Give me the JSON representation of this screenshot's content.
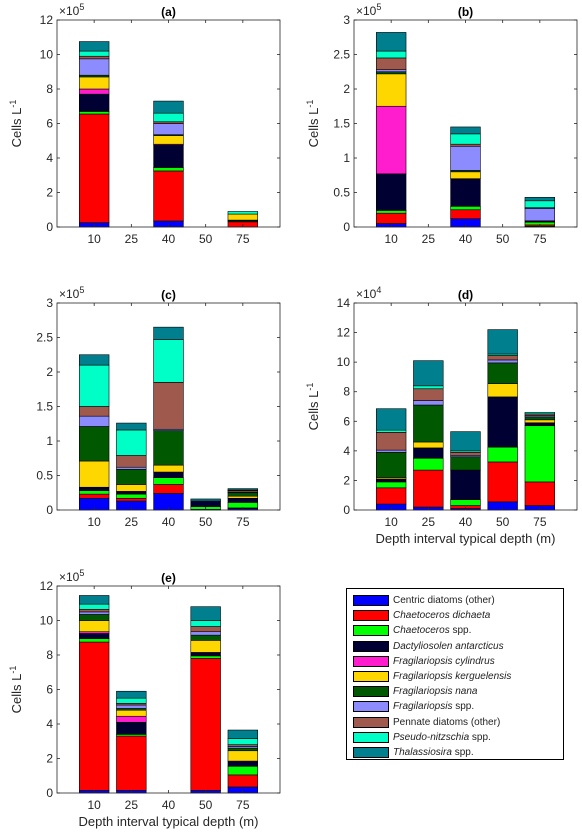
{
  "categories": [
    "10",
    "25",
    "40",
    "50",
    "75"
  ],
  "legend": [
    {
      "label": "Centric diatoms (other)",
      "italic": "",
      "suffix": "",
      "color": "#0000ff"
    },
    {
      "label": "",
      "italic": "Chaetoceros dichaeta",
      "suffix": "",
      "color": "#ff0000"
    },
    {
      "label": "",
      "italic": "Chaetoceros",
      "suffix": " spp.",
      "color": "#00ff00"
    },
    {
      "label": "",
      "italic": "Dactyliosolen antarcticus",
      "suffix": "",
      "color": "#000033"
    },
    {
      "label": "",
      "italic": "Fragilariopsis cylindrus",
      "suffix": "",
      "color": "#ff1dce"
    },
    {
      "label": "",
      "italic": "Fragilariopsis kerguelensis",
      "suffix": "",
      "color": "#ffd700"
    },
    {
      "label": "",
      "italic": "Fragilariopsis nana",
      "suffix": "",
      "color": "#005800"
    },
    {
      "label": "",
      "italic": "Fragilariopsis",
      "suffix": " spp.",
      "color": "#8c8cff"
    },
    {
      "label": "Pennate diatoms (other)",
      "italic": "",
      "suffix": "",
      "color": "#a0594d"
    },
    {
      "label": "",
      "italic": "Pseudo-nitzschia",
      "suffix": " spp.",
      "color": "#00ffc6"
    },
    {
      "label": "",
      "italic": "Thalassiosira",
      "suffix": " spp.",
      "color": "#00808f"
    }
  ],
  "chart_data": [
    {
      "type": "bar",
      "stacked": true,
      "panel": "(a)",
      "ylabel": "Cells L",
      "ylabel_sup": "-1",
      "xlabel": "",
      "exponent_label": "×10",
      "exponent": "5",
      "ylim": [
        0,
        12
      ],
      "yticks": [
        0,
        2,
        4,
        6,
        8,
        10,
        12
      ],
      "categories": [
        "10",
        "25",
        "40",
        "50",
        "75"
      ],
      "series": [
        {
          "values": [
            0.25,
            0,
            0.35,
            0,
            0
          ]
        },
        {
          "values": [
            6.3,
            0,
            2.9,
            0,
            0.3
          ]
        },
        {
          "values": [
            0.15,
            0,
            0.2,
            0,
            0.05
          ]
        },
        {
          "values": [
            1.0,
            0,
            1.3,
            0,
            0.05
          ]
        },
        {
          "values": [
            0.3,
            0,
            0.05,
            0,
            0
          ]
        },
        {
          "values": [
            0.7,
            0,
            0.5,
            0,
            0.35
          ]
        },
        {
          "values": [
            0.1,
            0,
            0.05,
            0,
            0
          ]
        },
        {
          "values": [
            0.95,
            0,
            0.65,
            0,
            0
          ]
        },
        {
          "values": [
            0.15,
            0,
            0.1,
            0,
            0
          ]
        },
        {
          "values": [
            0.3,
            0,
            0.5,
            0,
            0.15
          ]
        },
        {
          "values": [
            0.55,
            0,
            0.7,
            0,
            0
          ]
        }
      ]
    },
    {
      "type": "bar",
      "stacked": true,
      "panel": "(b)",
      "ylabel": "Cells L",
      "ylabel_sup": "-1",
      "xlabel": "",
      "exponent_label": "×10",
      "exponent": "5",
      "ylim": [
        0,
        3
      ],
      "yticks": [
        0,
        0.5,
        1,
        1.5,
        2,
        2.5,
        3
      ],
      "categories": [
        "10",
        "25",
        "40",
        "50",
        "75"
      ],
      "series": [
        {
          "values": [
            0.05,
            0,
            0.12,
            0,
            0.01
          ]
        },
        {
          "values": [
            0.15,
            0,
            0.13,
            0,
            0.02
          ]
        },
        {
          "values": [
            0.04,
            0,
            0.05,
            0,
            0.04
          ]
        },
        {
          "values": [
            0.53,
            0,
            0.4,
            0,
            0.02
          ]
        },
        {
          "values": [
            0.98,
            0,
            0,
            0,
            0
          ]
        },
        {
          "values": [
            0.47,
            0,
            0.1,
            0,
            0
          ]
        },
        {
          "values": [
            0.03,
            0,
            0.02,
            0,
            0
          ]
        },
        {
          "values": [
            0.03,
            0,
            0.35,
            0,
            0.18
          ]
        },
        {
          "values": [
            0.17,
            0,
            0.03,
            0,
            0.01
          ]
        },
        {
          "values": [
            0.1,
            0,
            0.15,
            0,
            0.1
          ]
        },
        {
          "values": [
            0.27,
            0,
            0.1,
            0,
            0.05
          ]
        }
      ]
    },
    {
      "type": "bar",
      "stacked": true,
      "panel": "(c)",
      "ylabel": "",
      "ylabel_sup": "",
      "xlabel": "",
      "exponent_label": "×10",
      "exponent": "5",
      "ylim": [
        0,
        3
      ],
      "yticks": [
        0,
        0.5,
        1,
        1.5,
        2,
        2.5,
        3
      ],
      "categories": [
        "10",
        "25",
        "40",
        "50",
        "75"
      ],
      "series": [
        {
          "values": [
            0.17,
            0.13,
            0.24,
            0.01,
            0.02
          ]
        },
        {
          "values": [
            0.06,
            0.04,
            0.13,
            0,
            0.01
          ]
        },
        {
          "values": [
            0.05,
            0.06,
            0.1,
            0.04,
            0.08
          ]
        },
        {
          "values": [
            0.05,
            0.04,
            0.08,
            0.08,
            0.06
          ]
        },
        {
          "values": [
            0,
            0,
            0,
            0,
            0
          ]
        },
        {
          "values": [
            0.38,
            0.1,
            0.1,
            0,
            0.03
          ]
        },
        {
          "values": [
            0.5,
            0.22,
            0.5,
            0,
            0.05
          ]
        },
        {
          "values": [
            0.15,
            0.03,
            0.02,
            0,
            0.01
          ]
        },
        {
          "values": [
            0.14,
            0.17,
            0.68,
            0,
            0.02
          ]
        },
        {
          "values": [
            0.6,
            0.37,
            0.62,
            0,
            0.01
          ]
        },
        {
          "values": [
            0.15,
            0.1,
            0.18,
            0.03,
            0.02
          ]
        }
      ]
    },
    {
      "type": "bar",
      "stacked": true,
      "panel": "(d)",
      "ylabel": "Cells L",
      "ylabel_sup": "-1",
      "xlabel": "Depth interval typical depth (m)",
      "exponent_label": "×10",
      "exponent": "4",
      "ylim": [
        0,
        14
      ],
      "yticks": [
        0,
        2,
        4,
        6,
        8,
        10,
        12,
        14
      ],
      "categories": [
        "10",
        "25",
        "40",
        "50",
        "75"
      ],
      "series": [
        {
          "values": [
            0.4,
            0.2,
            0.1,
            0.55,
            0.3
          ]
        },
        {
          "values": [
            1.1,
            2.5,
            0.2,
            2.7,
            1.6
          ]
        },
        {
          "values": [
            0.4,
            0.8,
            0.4,
            1.0,
            3.8
          ]
        },
        {
          "values": [
            0.2,
            0.7,
            2.0,
            3.4,
            0.2
          ]
        },
        {
          "values": [
            0,
            0,
            0,
            0,
            0
          ]
        },
        {
          "values": [
            0.1,
            0.4,
            0,
            0.9,
            0.2
          ]
        },
        {
          "values": [
            1.7,
            2.5,
            0.9,
            1.4,
            0.2
          ]
        },
        {
          "values": [
            0.15,
            0.3,
            0.1,
            0.2,
            0.1
          ]
        },
        {
          "values": [
            1.2,
            0.8,
            0.2,
            0.3,
            0.1
          ]
        },
        {
          "values": [
            0.15,
            0.2,
            0.1,
            0.1,
            0.1
          ]
        },
        {
          "values": [
            1.45,
            1.7,
            1.3,
            1.65,
            0
          ]
        }
      ]
    },
    {
      "type": "bar",
      "stacked": true,
      "panel": "(e)",
      "ylabel": "Cells L",
      "ylabel_sup": "-1",
      "xlabel": "Depth interval typical depth (m)",
      "exponent_label": "×10",
      "exponent": "5",
      "ylim": [
        0,
        12
      ],
      "yticks": [
        0,
        2,
        4,
        6,
        8,
        10,
        12
      ],
      "categories": [
        "10",
        "25",
        "40",
        "50",
        "75"
      ],
      "series": [
        {
          "values": [
            0.15,
            0.15,
            0,
            0.15,
            0.35
          ]
        },
        {
          "values": [
            8.6,
            3.15,
            0,
            7.65,
            0.7
          ]
        },
        {
          "values": [
            0.2,
            0.1,
            0,
            0.15,
            0.5
          ]
        },
        {
          "values": [
            0.3,
            0.7,
            0,
            0.2,
            0.3
          ]
        },
        {
          "values": [
            0.1,
            0.35,
            0,
            0,
            0
          ]
        },
        {
          "values": [
            0.65,
            0.35,
            0,
            0.7,
            0.6
          ]
        },
        {
          "values": [
            0.35,
            0.1,
            0,
            0.3,
            0.15
          ]
        },
        {
          "values": [
            0.15,
            0.2,
            0,
            0.2,
            0.1
          ]
        },
        {
          "values": [
            0.15,
            0.1,
            0,
            0.3,
            0.1
          ]
        },
        {
          "values": [
            0.3,
            0.3,
            0,
            0.35,
            0.35
          ]
        },
        {
          "values": [
            0.5,
            0.4,
            0,
            0.8,
            0.5
          ]
        }
      ]
    }
  ]
}
